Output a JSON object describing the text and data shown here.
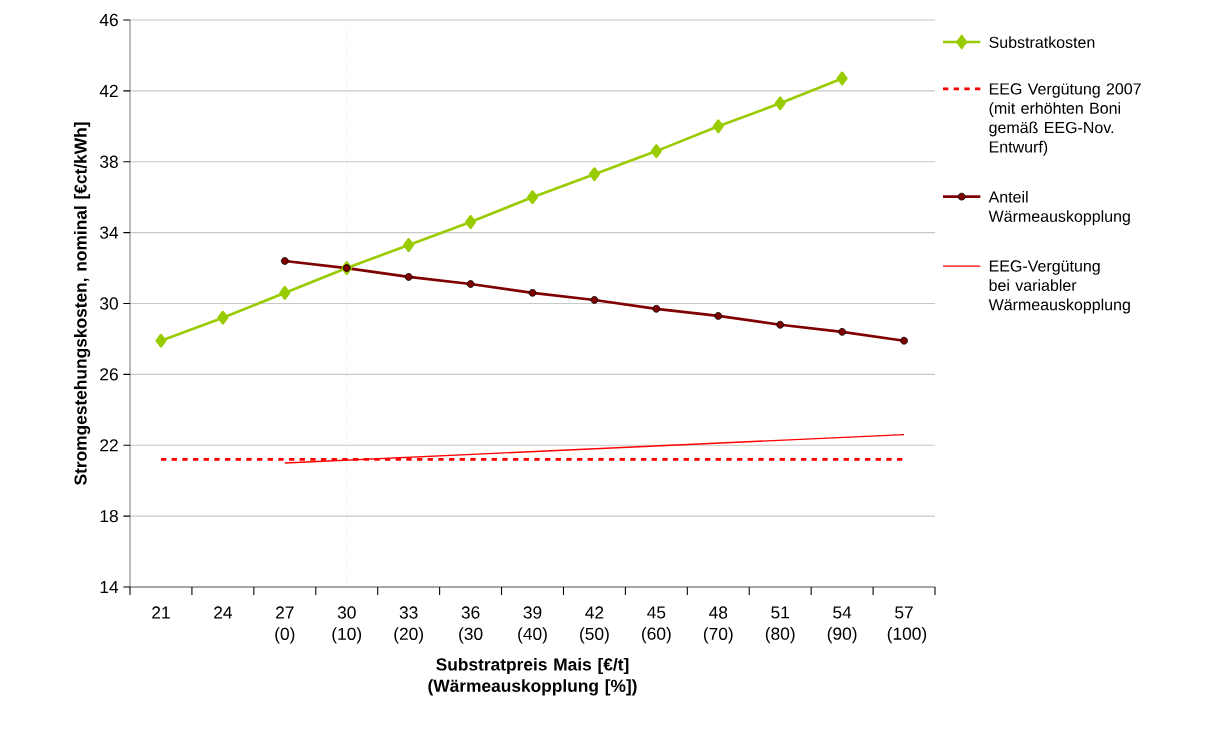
{
  "chart_data": {
    "type": "line",
    "xlabel": "Substratpreis Mais [€/t] (Wärmeauskopplung [%])",
    "ylabel": "Stromgestehungskosten, nominal [€ct/kWh]",
    "x": [
      21,
      24,
      27,
      30,
      33,
      36,
      39,
      42,
      45,
      48,
      51,
      54
    ],
    "xlim": [
      19.5,
      58.5
    ],
    "xticks": [
      21,
      24,
      {
        "value": 27,
        "label": "27 (0)"
      },
      {
        "value": 30,
        "label": "30 (10)"
      },
      {
        "value": 33,
        "label": "33 (20)"
      },
      {
        "value": 36,
        "label": "36 (30"
      },
      {
        "value": 39,
        "label": "39 (40)"
      },
      {
        "value": 42,
        "label": "42 (50)"
      },
      {
        "value": 45,
        "label": "45 (60)"
      },
      {
        "value": 48,
        "label": "48 (70)"
      },
      {
        "value": 51,
        "label": "51 (80)"
      },
      {
        "value": 54,
        "label": "54 (90)"
      },
      {
        "value": 57,
        "label": "57 (100)"
      }
    ],
    "ylim": [
      14,
      46
    ],
    "yticks": [
      14,
      18,
      22,
      26,
      30,
      34,
      38,
      42,
      46
    ],
    "grid": "y",
    "legend": "right",
    "ref_lines": [
      {
        "axis": "x",
        "value": 30,
        "color": "#a6a6a6",
        "line_style": "dotted"
      }
    ],
    "series": [
      {
        "name": "Substratkosten",
        "color": "#99cc00",
        "marker": "diamond",
        "line_style": "solid",
        "values": [
          27.9,
          29.2,
          30.6,
          32.0,
          33.3,
          34.6,
          36.0,
          37.3,
          38.6,
          40.0,
          41.3,
          42.7
        ]
      },
      {
        "name": "EEG Vergütung 2007 (mit erhöhten Boni gemäß EEG-Nov. Entwurf)",
        "color": "#ff0000",
        "marker": "none",
        "line_style": "dashed",
        "x": [
          21,
          57
        ],
        "values": [
          21.2,
          21.2
        ]
      },
      {
        "name": "Anteil Wärmeauskopplung",
        "color": "#800000",
        "marker": "circle",
        "line_style": "solid",
        "x": [
          27,
          30,
          33,
          36,
          39,
          42,
          45,
          48,
          51,
          54,
          57
        ],
        "values": [
          32.4,
          32.0,
          31.5,
          31.1,
          30.6,
          30.2,
          29.7,
          29.3,
          28.8,
          28.4,
          27.9
        ]
      },
      {
        "name": "EEG-Vergütung bei variabler Wärmeauskopplung",
        "color": "#ff0000",
        "marker": "none",
        "line_style": "solid",
        "x": [
          27,
          57
        ],
        "values": [
          21.0,
          22.6
        ]
      }
    ]
  }
}
